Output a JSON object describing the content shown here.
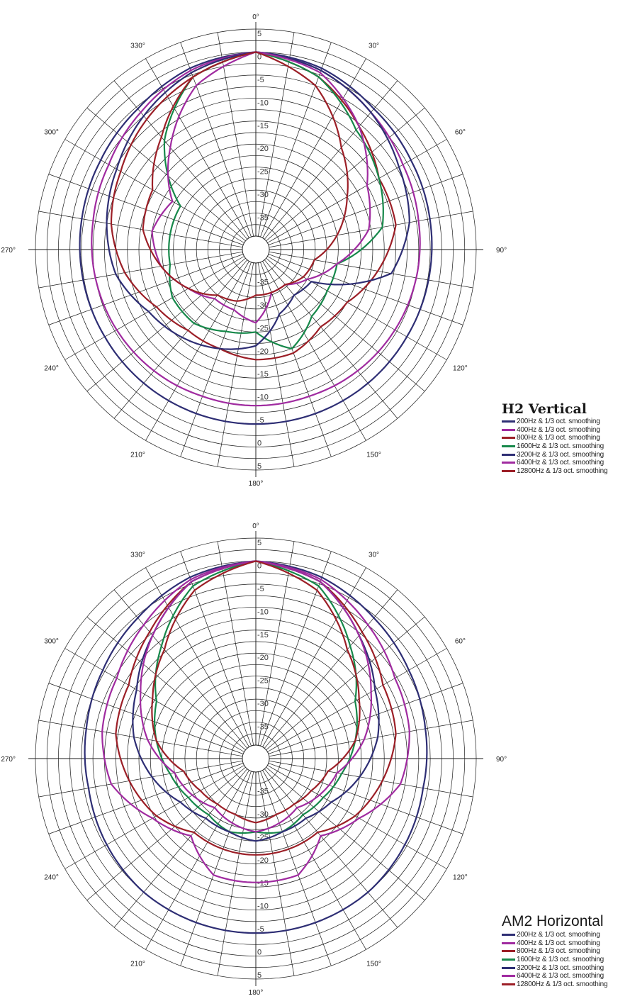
{
  "colors": {
    "navy": "#2e2e74",
    "purple": "#a02ba0",
    "darkred": "#9c1f27",
    "green": "#16884a",
    "grid": "#1a1a1a"
  },
  "chart_data": [
    {
      "type": "polar",
      "title": "H2 Vertical",
      "angle_labels": [
        "0°",
        "30°",
        "60°",
        "90°",
        "120°",
        "150°",
        "180°",
        "210°",
        "240°",
        "270°",
        "300°",
        "330°"
      ],
      "radial_tick_labels": [
        "5",
        "0",
        "-5",
        "-10",
        "-15",
        "-20",
        "-25",
        "-30",
        "-35"
      ],
      "r_range_db": [
        -40,
        5
      ],
      "ring_step_db": 2.5,
      "spoke_step_deg": 10,
      "series": [
        {
          "name": "200Hz & 1/3 oct. smoothing",
          "color": "#2e2e74",
          "angles": [
            0,
            20,
            40,
            60,
            80,
            100,
            120,
            140,
            160,
            180,
            200,
            220,
            240,
            260,
            280,
            300,
            320,
            340,
            360
          ],
          "values": [
            0,
            -1,
            -3,
            -4,
            -4.5,
            -4.8,
            -5,
            -5,
            -5,
            -5,
            -5,
            -5,
            -5,
            -4.8,
            -4.5,
            -4,
            -3,
            -1,
            0
          ]
        },
        {
          "name": "400Hz & 1/3 oct. smoothing",
          "color": "#a02ba0",
          "angles": [
            0,
            20,
            40,
            60,
            80,
            100,
            120,
            140,
            160,
            180,
            200,
            220,
            240,
            260,
            280,
            300,
            320,
            340,
            360
          ],
          "values": [
            0,
            -1.5,
            -4,
            -6,
            -7,
            -7.5,
            -8,
            -8.5,
            -9,
            -9,
            -9,
            -8.5,
            -8,
            -7.5,
            -7,
            -6,
            -4,
            -1.5,
            0
          ]
        },
        {
          "name": "800Hz & 1/3 oct. smoothing",
          "color": "#9c1f27",
          "angles": [
            0,
            20,
            40,
            60,
            80,
            100,
            120,
            140,
            160,
            180,
            200,
            220,
            240,
            260,
            280,
            300,
            320,
            340,
            360
          ],
          "values": [
            0,
            -3,
            -8,
            -12,
            -12,
            -16,
            -20,
            -21,
            -19,
            -19,
            -20,
            -20,
            -18,
            -14,
            -11,
            -9,
            -6,
            -3,
            0
          ]
        },
        {
          "name": "1600Hz & 1/3 oct. smoothing",
          "color": "#16884a",
          "angles": [
            0,
            20,
            40,
            60,
            80,
            100,
            120,
            140,
            160,
            180,
            200,
            220,
            240,
            260,
            280,
            300,
            320,
            340,
            360
          ],
          "values": [
            0,
            -3,
            -9,
            -12,
            -15,
            -25,
            -25,
            -24,
            -20,
            -25,
            -24,
            -22,
            -22,
            -24,
            -24,
            -24,
            -12,
            -3,
            0
          ]
        },
        {
          "name": "3200Hz & 1/3 oct. smoothing",
          "color": "#2e2e74",
          "angles": [
            0,
            20,
            40,
            60,
            80,
            100,
            120,
            140,
            160,
            180,
            200,
            220,
            240,
            260,
            280,
            300,
            320,
            340,
            360
          ],
          "values": [
            0,
            -1.5,
            -4,
            -7,
            -9,
            -13,
            -29,
            -30,
            -28,
            -22,
            -20,
            -18,
            -16,
            -12,
            -10,
            -8,
            -5,
            -2,
            0
          ]
        },
        {
          "name": "6400Hz & 1/3 oct. smoothing",
          "color": "#a02ba0",
          "angles": [
            0,
            20,
            40,
            60,
            80,
            100,
            120,
            140,
            160,
            180,
            200,
            220,
            240,
            260,
            280,
            300,
            320,
            340,
            360
          ],
          "values": [
            0,
            -2,
            -8,
            -15,
            -18,
            -25,
            -30,
            -33,
            -33,
            -27,
            -29,
            -29,
            -26,
            -22,
            -20,
            -22,
            -14,
            -5,
            0
          ]
        },
        {
          "name": "12800Hz & 1/3 oct. smoothing",
          "color": "#9c1f27",
          "angles": [
            0,
            20,
            40,
            60,
            80,
            100,
            120,
            140,
            160,
            180,
            200,
            220,
            240,
            260,
            280,
            300,
            320,
            340,
            360
          ],
          "values": [
            0,
            -5,
            -14,
            -20,
            -25,
            -30,
            -31,
            -33,
            -33,
            -33,
            -31,
            -30,
            -26,
            -22,
            -18,
            -17,
            -11,
            -3,
            0
          ]
        }
      ]
    },
    {
      "type": "polar",
      "title": "AM2 Horizontal",
      "angle_labels": [
        "0°",
        "30°",
        "60°",
        "90°",
        "120°",
        "150°",
        "180°",
        "210°",
        "240°",
        "270°",
        "300°",
        "330°"
      ],
      "radial_tick_labels": [
        "5",
        "0",
        "-5",
        "-10",
        "-15",
        "-20",
        "-25",
        "-30",
        "-35"
      ],
      "r_range_db": [
        -40,
        5
      ],
      "ring_step_db": 2.5,
      "spoke_step_deg": 10,
      "series": [
        {
          "name": "200Hz & 1/3 oct. smoothing",
          "color": "#2e2e74",
          "angles": [
            0,
            20,
            40,
            60,
            80,
            100,
            120,
            140,
            160,
            180,
            200,
            220,
            240,
            260,
            280,
            300,
            320,
            340,
            360
          ],
          "values": [
            0,
            -1,
            -3,
            -4.5,
            -5.5,
            -6,
            -5.5,
            -5,
            -5,
            -5,
            -5,
            -5,
            -5.5,
            -6,
            -5.5,
            -4.5,
            -3,
            -1,
            0
          ]
        },
        {
          "name": "400Hz & 1/3 oct. smoothing",
          "color": "#a02ba0",
          "angles": [
            0,
            20,
            40,
            60,
            80,
            100,
            120,
            140,
            160,
            180,
            200,
            220,
            240,
            260,
            280,
            300,
            320,
            340,
            360
          ],
          "values": [
            0,
            -1.5,
            -5,
            -8,
            -9,
            -11,
            -17,
            -21,
            -16,
            -16,
            -16,
            -21,
            -17,
            -11,
            -9,
            -8,
            -5,
            -1.5,
            0
          ]
        },
        {
          "name": "800Hz & 1/3 oct. smoothing",
          "color": "#9c1f27",
          "angles": [
            0,
            20,
            40,
            60,
            80,
            100,
            120,
            140,
            160,
            180,
            200,
            220,
            240,
            260,
            280,
            300,
            320,
            340,
            360
          ],
          "values": [
            0,
            -2,
            -7,
            -11,
            -12,
            -15,
            -18,
            -22,
            -22,
            -22,
            -22,
            -22,
            -18,
            -15,
            -12,
            -11,
            -7,
            -2,
            0
          ]
        },
        {
          "name": "1600Hz & 1/3 oct. smoothing",
          "color": "#16884a",
          "angles": [
            0,
            20,
            40,
            60,
            80,
            100,
            120,
            140,
            160,
            180,
            200,
            220,
            240,
            260,
            280,
            300,
            320,
            340,
            360
          ],
          "values": [
            0,
            -3,
            -11,
            -18,
            -21,
            -24,
            -26,
            -27,
            -26,
            -27,
            -26,
            -27,
            -26,
            -24,
            -21,
            -18,
            -11,
            -3,
            0
          ]
        },
        {
          "name": "3200Hz & 1/3 oct. smoothing",
          "color": "#2e2e74",
          "angles": [
            0,
            20,
            40,
            60,
            80,
            100,
            120,
            140,
            160,
            180,
            200,
            220,
            240,
            260,
            280,
            300,
            320,
            340,
            360
          ],
          "values": [
            0,
            -2,
            -8,
            -13,
            -16,
            -20,
            -24,
            -26,
            -26,
            -25,
            -26,
            -26,
            -24,
            -20,
            -16,
            -13,
            -8,
            -2,
            0
          ]
        },
        {
          "name": "6400Hz & 1/3 oct. smoothing",
          "color": "#a02ba0",
          "angles": [
            0,
            20,
            40,
            60,
            80,
            100,
            120,
            140,
            160,
            180,
            200,
            220,
            240,
            260,
            280,
            300,
            320,
            340,
            360
          ],
          "values": [
            0,
            -2,
            -8,
            -14,
            -19,
            -25,
            -27,
            -29,
            -28,
            -27,
            -28,
            -29,
            -27,
            -25,
            -19,
            -14,
            -8,
            -2,
            0
          ]
        },
        {
          "name": "12800Hz & 1/3 oct. smoothing",
          "color": "#9c1f27",
          "angles": [
            0,
            20,
            40,
            60,
            80,
            100,
            120,
            140,
            160,
            180,
            200,
            220,
            240,
            260,
            280,
            300,
            320,
            340,
            360
          ],
          "values": [
            0,
            -4,
            -12,
            -17,
            -21,
            -27,
            -29,
            -30,
            -30,
            -29,
            -30,
            -30,
            -29,
            -27,
            -21,
            -17,
            -12,
            -4,
            0
          ]
        }
      ]
    }
  ]
}
